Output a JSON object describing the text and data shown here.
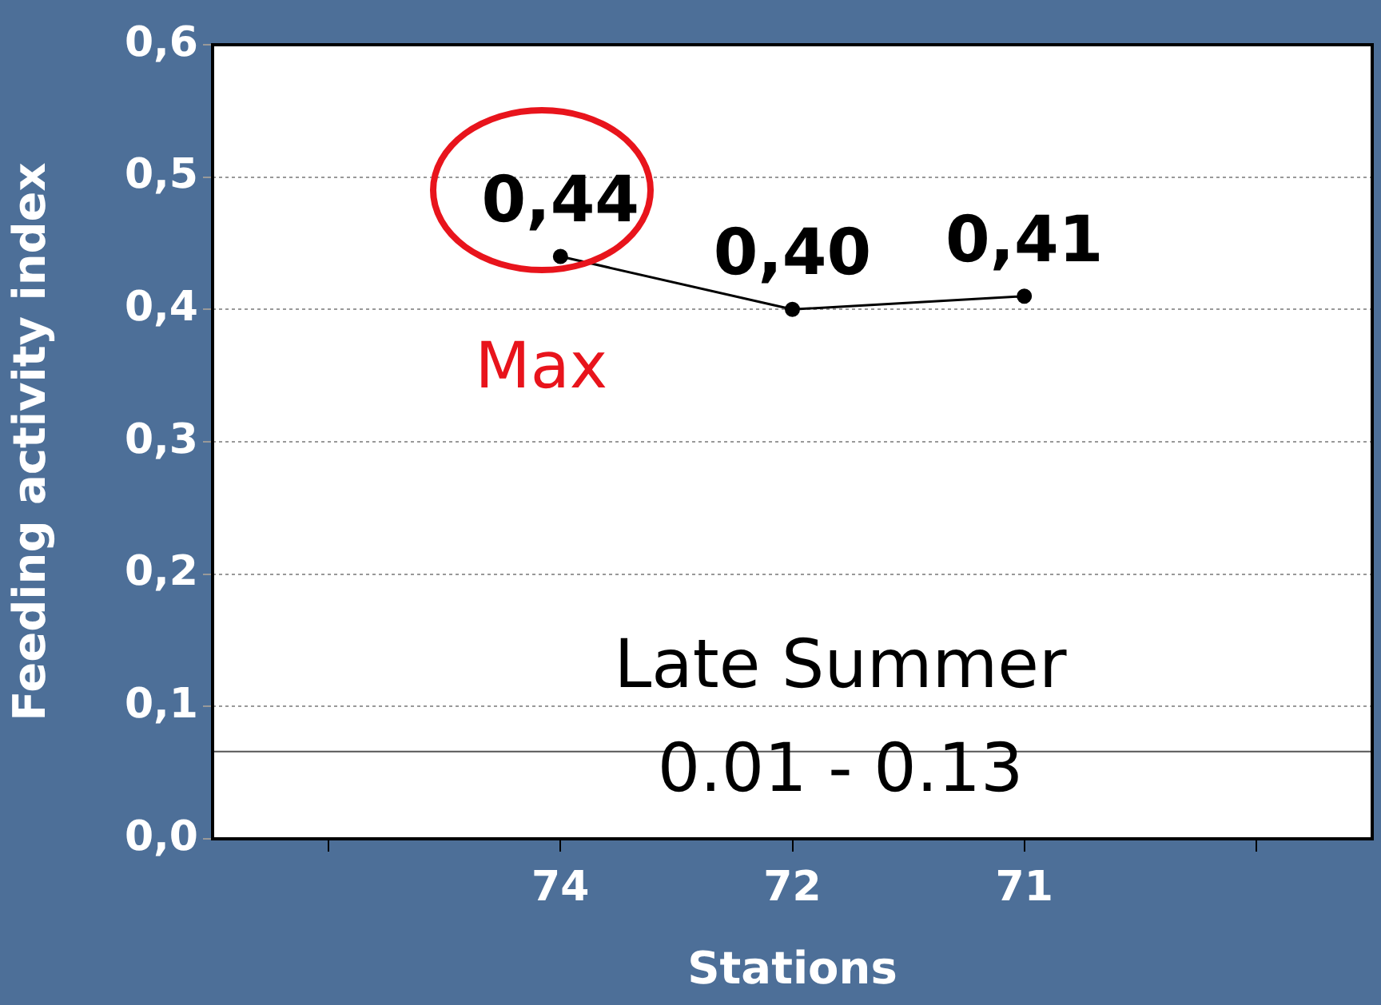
{
  "chart_data": {
    "type": "line",
    "xlabel": "Stations",
    "ylabel": "Feeding activity index",
    "categories": [
      null,
      "74",
      "72",
      "71",
      null
    ],
    "series": [
      {
        "color": "#000000",
        "values": [
          null,
          0.44,
          0.4,
          0.41,
          null
        ],
        "value_labels": [
          null,
          "0,44",
          "0,40",
          "0,41",
          null
        ]
      }
    ],
    "ylim": [
      0,
      0.6
    ],
    "yticks": [
      {
        "value": 0,
        "label": "0,0"
      },
      {
        "value": 0.1,
        "label": "0,1"
      },
      {
        "value": 0.2,
        "label": "0,2"
      },
      {
        "value": 0.3,
        "label": "0,3"
      },
      {
        "value": 0.4,
        "label": "0,4"
      },
      {
        "value": 0.5,
        "label": "0,5"
      },
      {
        "value": 0.6,
        "label": "0,6"
      }
    ],
    "grid": "y",
    "marker": "circle",
    "line_style": "solid",
    "legend": false,
    "ref_lines": [
      {
        "axis": "y",
        "value": 0.066,
        "color": "#555555"
      }
    ],
    "annotations": [
      {
        "text": "Max",
        "x": "74",
        "y": 0.44
      },
      "Late Summer",
      "0.01 - 0.13"
    ]
  }
}
